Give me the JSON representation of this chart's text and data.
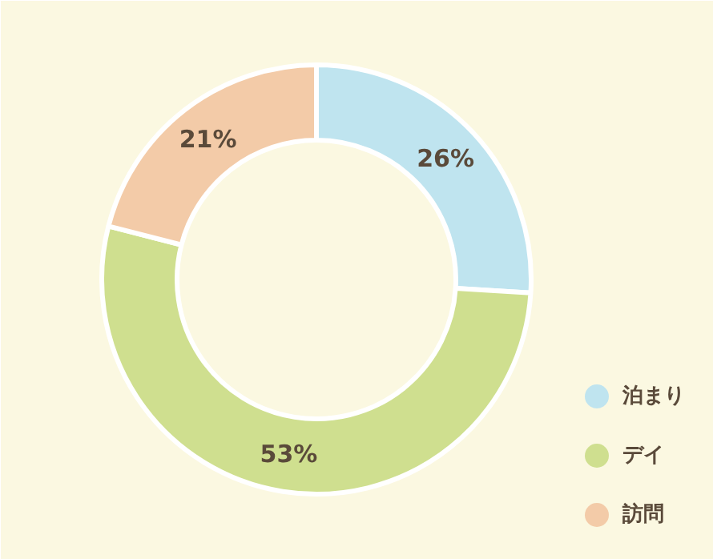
{
  "chart_data": {
    "type": "donut",
    "categories": [
      "泊まり",
      "デイ",
      "訪問"
    ],
    "values": [
      26,
      53,
      21
    ],
    "colors": [
      "#bfe4ef",
      "#cfdf8f",
      "#f3cba8"
    ],
    "value_labels": [
      "26%",
      "53%",
      "21%"
    ],
    "legend": "bottom right"
  }
}
